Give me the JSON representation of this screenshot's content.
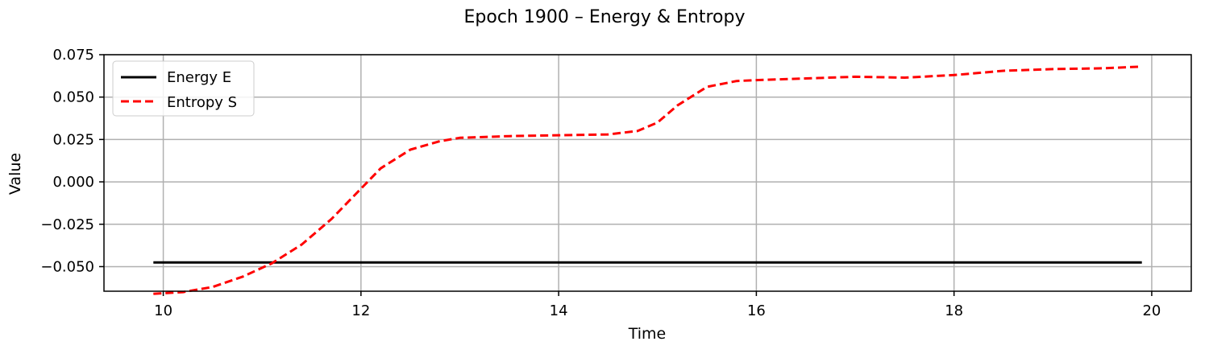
{
  "chart_data": {
    "type": "line",
    "title": "Epoch 1900 – Energy & Entropy",
    "xlabel": "Time",
    "ylabel": "Value",
    "xlim": [
      9.4,
      20.4
    ],
    "ylim": [
      -0.0645,
      0.075
    ],
    "x_ticks": [
      10,
      12,
      14,
      16,
      18,
      20
    ],
    "y_ticks": [
      -0.05,
      -0.025,
      0.0,
      0.025,
      0.05,
      0.075
    ],
    "x_tick_labels": [
      "10",
      "12",
      "14",
      "16",
      "18",
      "20"
    ],
    "y_tick_labels": [
      "−0.050",
      "−0.025",
      "0.000",
      "0.025",
      "0.050",
      "0.075"
    ],
    "grid": true,
    "legend_position": "top-left",
    "series": [
      {
        "name": "Energy E",
        "color": "#000000",
        "style": "solid",
        "x": [
          9.9,
          19.9
        ],
        "y": [
          -0.0475,
          -0.0475
        ]
      },
      {
        "name": "Entropy S",
        "color": "#ff0000",
        "style": "dashed",
        "x": [
          9.9,
          10.2,
          10.5,
          10.8,
          11.1,
          11.4,
          11.7,
          12.0,
          12.2,
          12.5,
          12.8,
          13.0,
          13.5,
          14.0,
          14.5,
          14.8,
          15.0,
          15.2,
          15.5,
          15.8,
          16.0,
          16.5,
          17.0,
          17.5,
          18.0,
          18.5,
          19.0,
          19.5,
          19.9
        ],
        "y": [
          -0.066,
          -0.065,
          -0.062,
          -0.056,
          -0.048,
          -0.037,
          -0.022,
          -0.004,
          0.008,
          0.019,
          0.024,
          0.026,
          0.027,
          0.0275,
          0.028,
          0.03,
          0.035,
          0.045,
          0.056,
          0.0595,
          0.06,
          0.061,
          0.062,
          0.0615,
          0.063,
          0.0655,
          0.0665,
          0.067,
          0.068
        ]
      }
    ]
  }
}
